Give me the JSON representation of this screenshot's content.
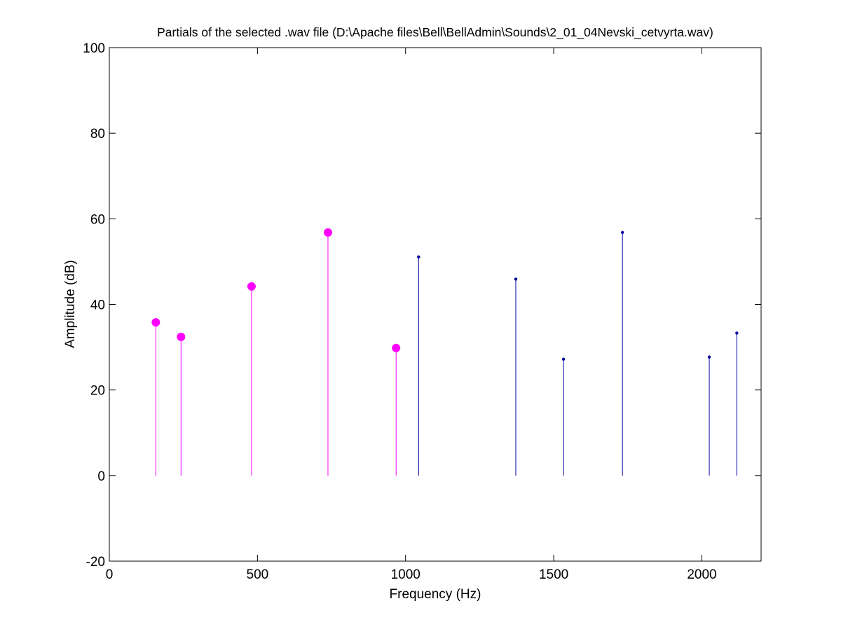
{
  "chart_data": {
    "type": "stem",
    "title": "Partials of the selected .wav file (D:\\Apache files\\Bell\\BellAdmin\\Sounds\\2_01_04Nevski_cetvyrta.wav)",
    "xlabel": "Frequency (Hz)",
    "ylabel": "Amplitude (dB)",
    "xlim": [
      0,
      2200
    ],
    "ylim": [
      -20,
      100
    ],
    "x_ticks": [
      0,
      500,
      1000,
      1500,
      2000
    ],
    "x_tick_labels": [
      "0",
      "500",
      "1000",
      "1500",
      "2000"
    ],
    "y_ticks": [
      -20,
      0,
      20,
      40,
      60,
      80,
      100
    ],
    "y_tick_labels": [
      "-20",
      "0",
      "20",
      "40",
      "60",
      "80",
      "100"
    ],
    "grid": false,
    "series": [
      {
        "color": "#ff00ff",
        "marker": "large-filled-circle",
        "x": [
          157,
          242,
          480,
          738,
          968
        ],
        "y": [
          35.8,
          32.4,
          44.2,
          56.8,
          29.8
        ]
      },
      {
        "color": "#0000a0",
        "marker": "small-dot",
        "x": [
          1044,
          1372,
          1533,
          1732,
          2025,
          2118
        ],
        "y": [
          51.1,
          45.9,
          27.2,
          56.8,
          27.7,
          33.3
        ]
      }
    ]
  }
}
